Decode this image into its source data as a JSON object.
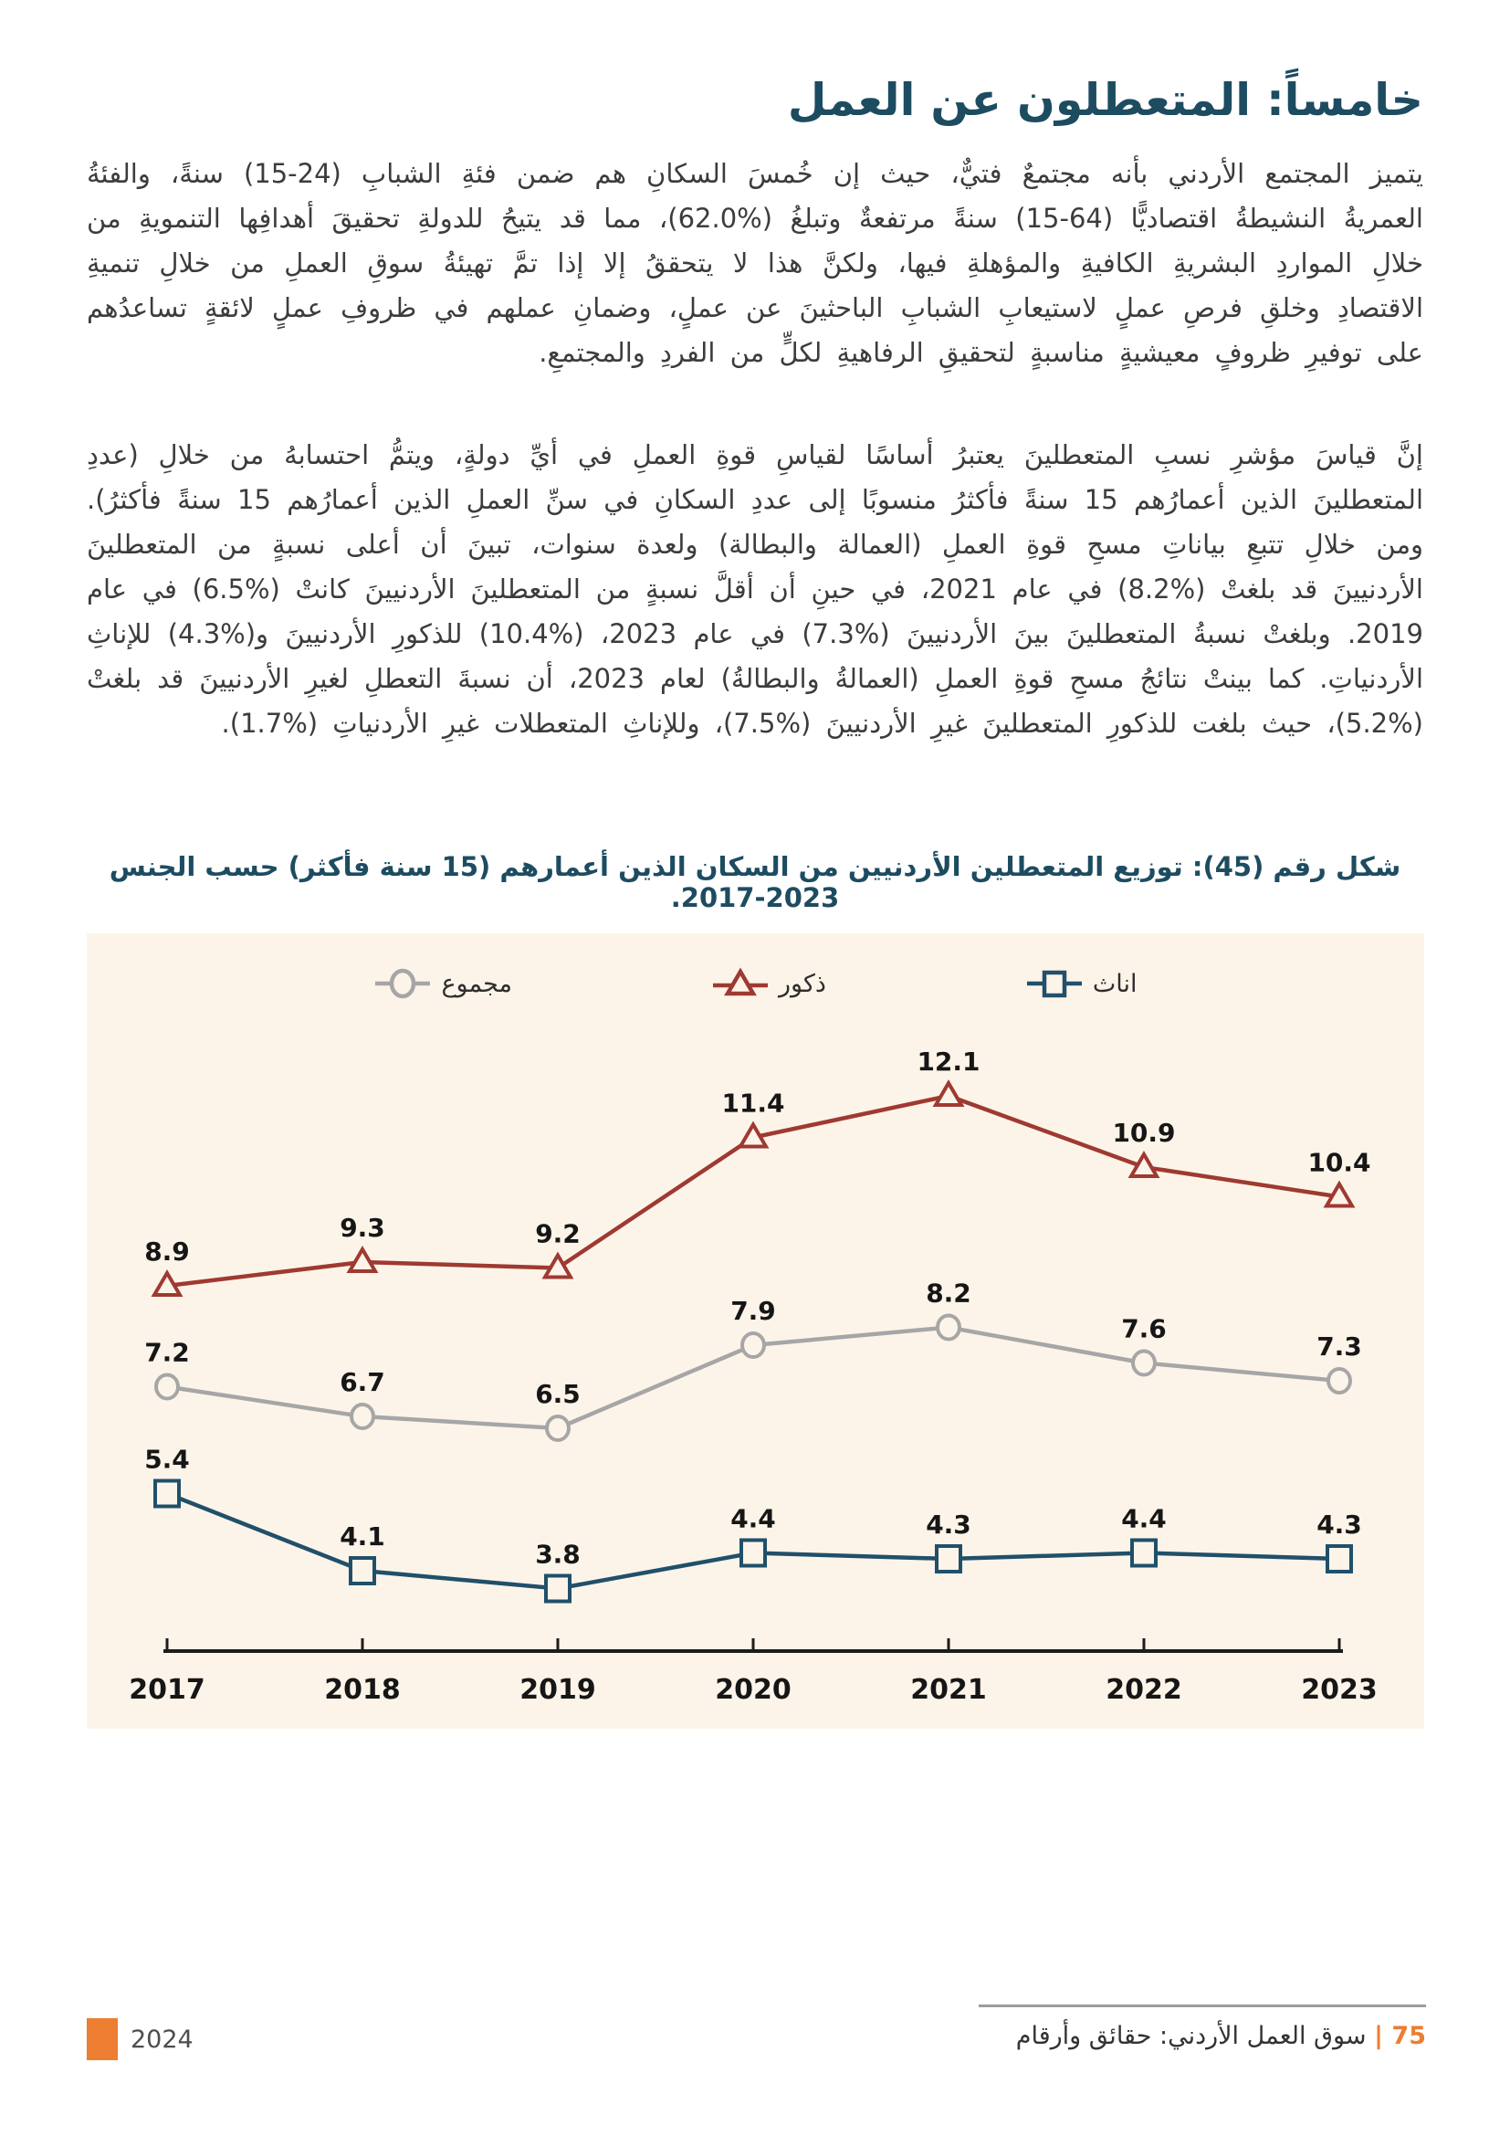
{
  "page": {
    "title": "خامساً: المتعطلون عن العمل",
    "paragraph1": "يتميز المجتمع الأردني بأنه مجتمعٌ فتيٌّ، حيث إن خُمسَ السكانِ هم ضمن فئةِ الشبابِ (24-15) سنةً، والفئةُ العمريةُ النشيطةُ اقتصاديًّا (64-15) سنةً مرتفعةٌ وتبلغُ (%62.0)، مما قد يتيحُ للدولةِ تحقيقَ أهدافِها التنمويةِ من خلالِ المواردِ البشريةِ الكافيةِ والمؤهلةِ فيها، ولكنَّ هذا لا يتحققُ إلا إذا تمَّ تهيئةُ سوقِ العملِ من خلالِ تنميةِ الاقتصادِ وخلقِ فرصِ عملٍ لاستيعابِ الشبابِ الباحثينَ عن عملٍ، وضمانِ عملهم في ظروفِ عملٍ لائقةٍ تساعدُهم على توفيرِ ظروفٍ معيشيةٍ مناسبةٍ لتحقيقِ الرفاهيةِ لكلٍّ من الفردِ والمجتمعِ.",
    "paragraph2": "إنَّ قياسَ مؤشرِ نسبِ المتعطلينَ يعتبرُ أساسًا لقياسِ قوةِ العملِ في أيِّ دولةٍ، ويتمُّ احتسابهُ من خلالِ (عددِ المتعطلينَ الذين أعمارُهم 15 سنةً فأكثرُ منسوبًا إلى عددِ السكانِ في سنِّ العملِ الذين أعمارُهم 15 سنةً فأكثرُ). ومن خلالِ تتبعِ بياناتِ مسحِ قوةِ العملِ (العمالة والبطالة) ولعدة سنوات، تبينَ أن أعلى نسبةٍ من المتعطلينَ الأردنيينَ قد بلغتْ (%8.2) في عام 2021، في حينِ أن أقلَّ نسبةٍ من المتعطلينَ الأردنيينَ كانتْ (%6.5) في عام 2019. وبلغتْ نسبةُ المتعطلينَ بينَ الأردنيينَ (%7.3) في عام 2023، (%10.4) للذكورِ الأردنيينَ و(%4.3) للإناثِ الأردنياتِ. كما بينتْ نتائجُ مسحِ قوةِ العملِ (العمالةُ والبطالةُ) لعام 2023، أن نسبةَ التعطلِ لغيرِ الأردنيينَ قد بلغتْ (%5.2)، حيث بلغت للذكورِ المتعطلينَ غيرِ الأردنيينَ (%7.5)، وللإناثِ المتعطلات غيرِ الأردنياتِ (%1.7)."
  },
  "chart_data": {
    "type": "line",
    "title": "شكل رقم (45): توزيع المتعطلين الأردنيين من السكان الذين أعمارهم (15 سنة فأكثر) حسب الجنس 2023-2017.",
    "categories": [
      "2017",
      "2018",
      "2019",
      "2020",
      "2021",
      "2022",
      "2023"
    ],
    "series": [
      {
        "key": "total",
        "name": "مجموع",
        "marker": "circle",
        "color": "#a6a6a6",
        "values": [
          7.2,
          6.7,
          6.5,
          7.9,
          8.2,
          7.6,
          7.3
        ]
      },
      {
        "key": "males",
        "name": "ذكور",
        "marker": "triangle",
        "color": "#9e3a31",
        "values": [
          8.9,
          9.3,
          9.2,
          11.4,
          12.1,
          10.9,
          10.4
        ]
      },
      {
        "key": "females",
        "name": "اناث",
        "marker": "square",
        "color": "#20506a",
        "values": [
          5.4,
          4.1,
          3.8,
          4.4,
          4.3,
          4.4,
          4.3
        ]
      }
    ],
    "xlabel": "",
    "ylabel": "",
    "ylim": [
      3,
      13
    ],
    "grid": false,
    "legend_position": "top",
    "background": "#fdf4e9",
    "axis_color": "#1c1c1c",
    "label_color": "#161616"
  },
  "footer": {
    "year": "2024",
    "page_label": "75 |",
    "book_title": "سوق العمل الأردني: حقائق وأرقام"
  }
}
